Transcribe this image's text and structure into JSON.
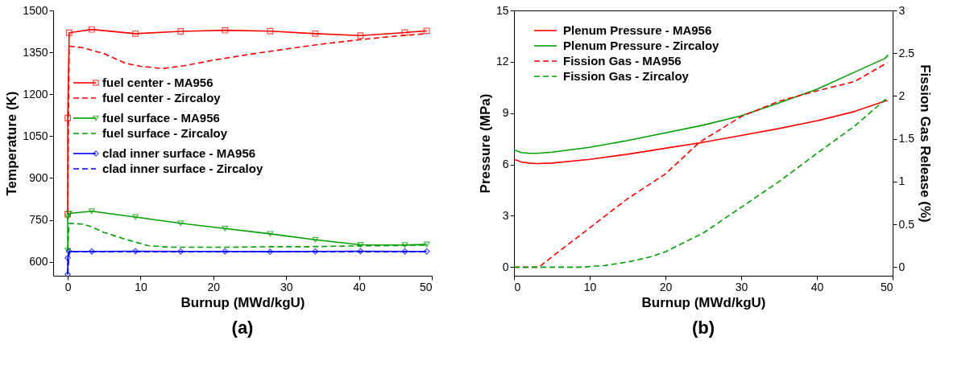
{
  "chart_data": [
    {
      "type": "line",
      "title": "(a)",
      "xlabel": "Burnup (MWd/kgU)",
      "ylabel": "Temperature (K)",
      "xlim": [
        -2,
        50
      ],
      "ylim": [
        550,
        1500
      ],
      "xticks": [
        0,
        10,
        20,
        30,
        40,
        50
      ],
      "yticks": [
        600,
        750,
        900,
        1050,
        1200,
        1350,
        1500
      ],
      "grid": false,
      "legend": "left",
      "series": [
        {
          "name": "fuel center - MA956",
          "color": "#ff0000",
          "line_style": "solid",
          "marker": "square",
          "x": [
            0,
            0,
            0.2,
            3.3,
            9.3,
            15.5,
            21.6,
            27.8,
            34,
            40.2,
            46.3,
            49.3
          ],
          "values": [
            770,
            1115,
            1420,
            1432,
            1417,
            1425,
            1429,
            1426,
            1417,
            1410,
            1421,
            1427
          ]
        },
        {
          "name": "fuel center - Zircaloy",
          "color": "#ff0000",
          "line_style": "dashed",
          "marker": "none",
          "x": [
            0,
            0.2,
            2,
            5,
            8,
            10,
            13,
            16,
            20,
            25,
            30,
            35,
            40,
            45,
            49.3
          ],
          "values": [
            770,
            1372,
            1367,
            1345,
            1310,
            1300,
            1292,
            1302,
            1322,
            1343,
            1362,
            1380,
            1395,
            1408,
            1417
          ]
        },
        {
          "name": "fuel surface - MA956",
          "color": "#00a000",
          "line_style": "solid",
          "marker": "triangle",
          "x": [
            0,
            0,
            0.2,
            3.3,
            9.3,
            15.5,
            21.6,
            27.8,
            34,
            40.2,
            46.3,
            49.3
          ],
          "values": [
            640,
            760,
            773,
            781,
            760,
            738,
            719,
            700,
            679,
            661,
            660,
            662
          ]
        },
        {
          "name": "fuel surface - Zircaloy",
          "color": "#00a000",
          "line_style": "dashed",
          "marker": "none",
          "x": [
            0,
            0.2,
            2,
            3,
            5,
            8,
            11,
            14,
            17,
            22,
            28,
            33,
            40,
            45,
            49.3
          ],
          "values": [
            640,
            738,
            735,
            728,
            705,
            680,
            658,
            652,
            652,
            652,
            654,
            654,
            657,
            658,
            660
          ]
        },
        {
          "name": "clad inner surface - MA956",
          "color": "#0000ff",
          "line_style": "solid",
          "marker": "diamond",
          "x": [
            0,
            0,
            0.2,
            3.3,
            9.3,
            15.5,
            21.6,
            27.8,
            34,
            40.2,
            46.3,
            49.3
          ],
          "values": [
            555,
            614,
            637,
            637,
            638,
            637,
            637,
            636,
            637,
            638,
            637,
            637
          ]
        },
        {
          "name": "clad inner surface - Zircaloy",
          "color": "#0000ff",
          "line_style": "dashed",
          "marker": "none",
          "x": [
            0,
            0.2,
            49.3
          ],
          "values": [
            555,
            636,
            636
          ]
        }
      ]
    },
    {
      "type": "line",
      "title": "(b)",
      "xlabel": "Burnup (MWd/kgU)",
      "ylabel": "Pressure (MPa)",
      "y2label": "Fission Gas Release (%)",
      "xlim": [
        0,
        50
      ],
      "ylim": [
        -0.5,
        15
      ],
      "y2lim": [
        -0.1,
        3
      ],
      "xticks": [
        0,
        10,
        20,
        30,
        40,
        50
      ],
      "yticks": [
        0,
        3,
        6,
        9,
        12,
        15
      ],
      "y2ticks": [
        0,
        0.5,
        1,
        1.5,
        2,
        2.5,
        3
      ],
      "grid": false,
      "legend": "top left",
      "series": [
        {
          "name": "Plenum Pressure - MA956",
          "color": "#ff0000",
          "line_style": "solid",
          "axis": "y",
          "x": [
            0,
            1,
            2,
            3,
            5,
            10,
            15,
            20,
            25,
            30,
            35,
            40,
            45,
            49.3
          ],
          "values": [
            6.3,
            6.15,
            6.08,
            6.05,
            6.08,
            6.3,
            6.6,
            6.95,
            7.3,
            7.7,
            8.1,
            8.55,
            9.1,
            9.75
          ]
        },
        {
          "name": "Plenum Pressure - Zircaloy",
          "color": "#00a000",
          "line_style": "solid",
          "axis": "y",
          "x": [
            0,
            1,
            2,
            3,
            5,
            10,
            15,
            20,
            25,
            30,
            35,
            40,
            45,
            49,
            49.4
          ],
          "values": [
            6.85,
            6.7,
            6.65,
            6.65,
            6.72,
            7.0,
            7.4,
            7.85,
            8.3,
            8.85,
            9.6,
            10.4,
            11.4,
            12.2,
            12.4
          ]
        },
        {
          "name": "Fission Gas - MA956",
          "color": "#ff0000",
          "line_style": "dashed",
          "axis": "y2",
          "x": [
            0,
            3.3,
            5,
            10,
            15,
            20,
            24.5,
            30,
            35,
            40,
            45,
            49.3
          ],
          "values": [
            0,
            0,
            0.12,
            0.46,
            0.8,
            1.09,
            1.46,
            1.76,
            1.94,
            2.06,
            2.17,
            2.39
          ]
        },
        {
          "name": "Fission Gas - Zircaloy",
          "color": "#00a000",
          "line_style": "dashed",
          "axis": "y2",
          "x": [
            0,
            9,
            12,
            15,
            18,
            20,
            25,
            30,
            35,
            40,
            45,
            49.3
          ],
          "values": [
            0,
            0,
            0.02,
            0.06,
            0.12,
            0.18,
            0.4,
            0.7,
            1.0,
            1.33,
            1.65,
            1.98
          ]
        }
      ]
    }
  ]
}
